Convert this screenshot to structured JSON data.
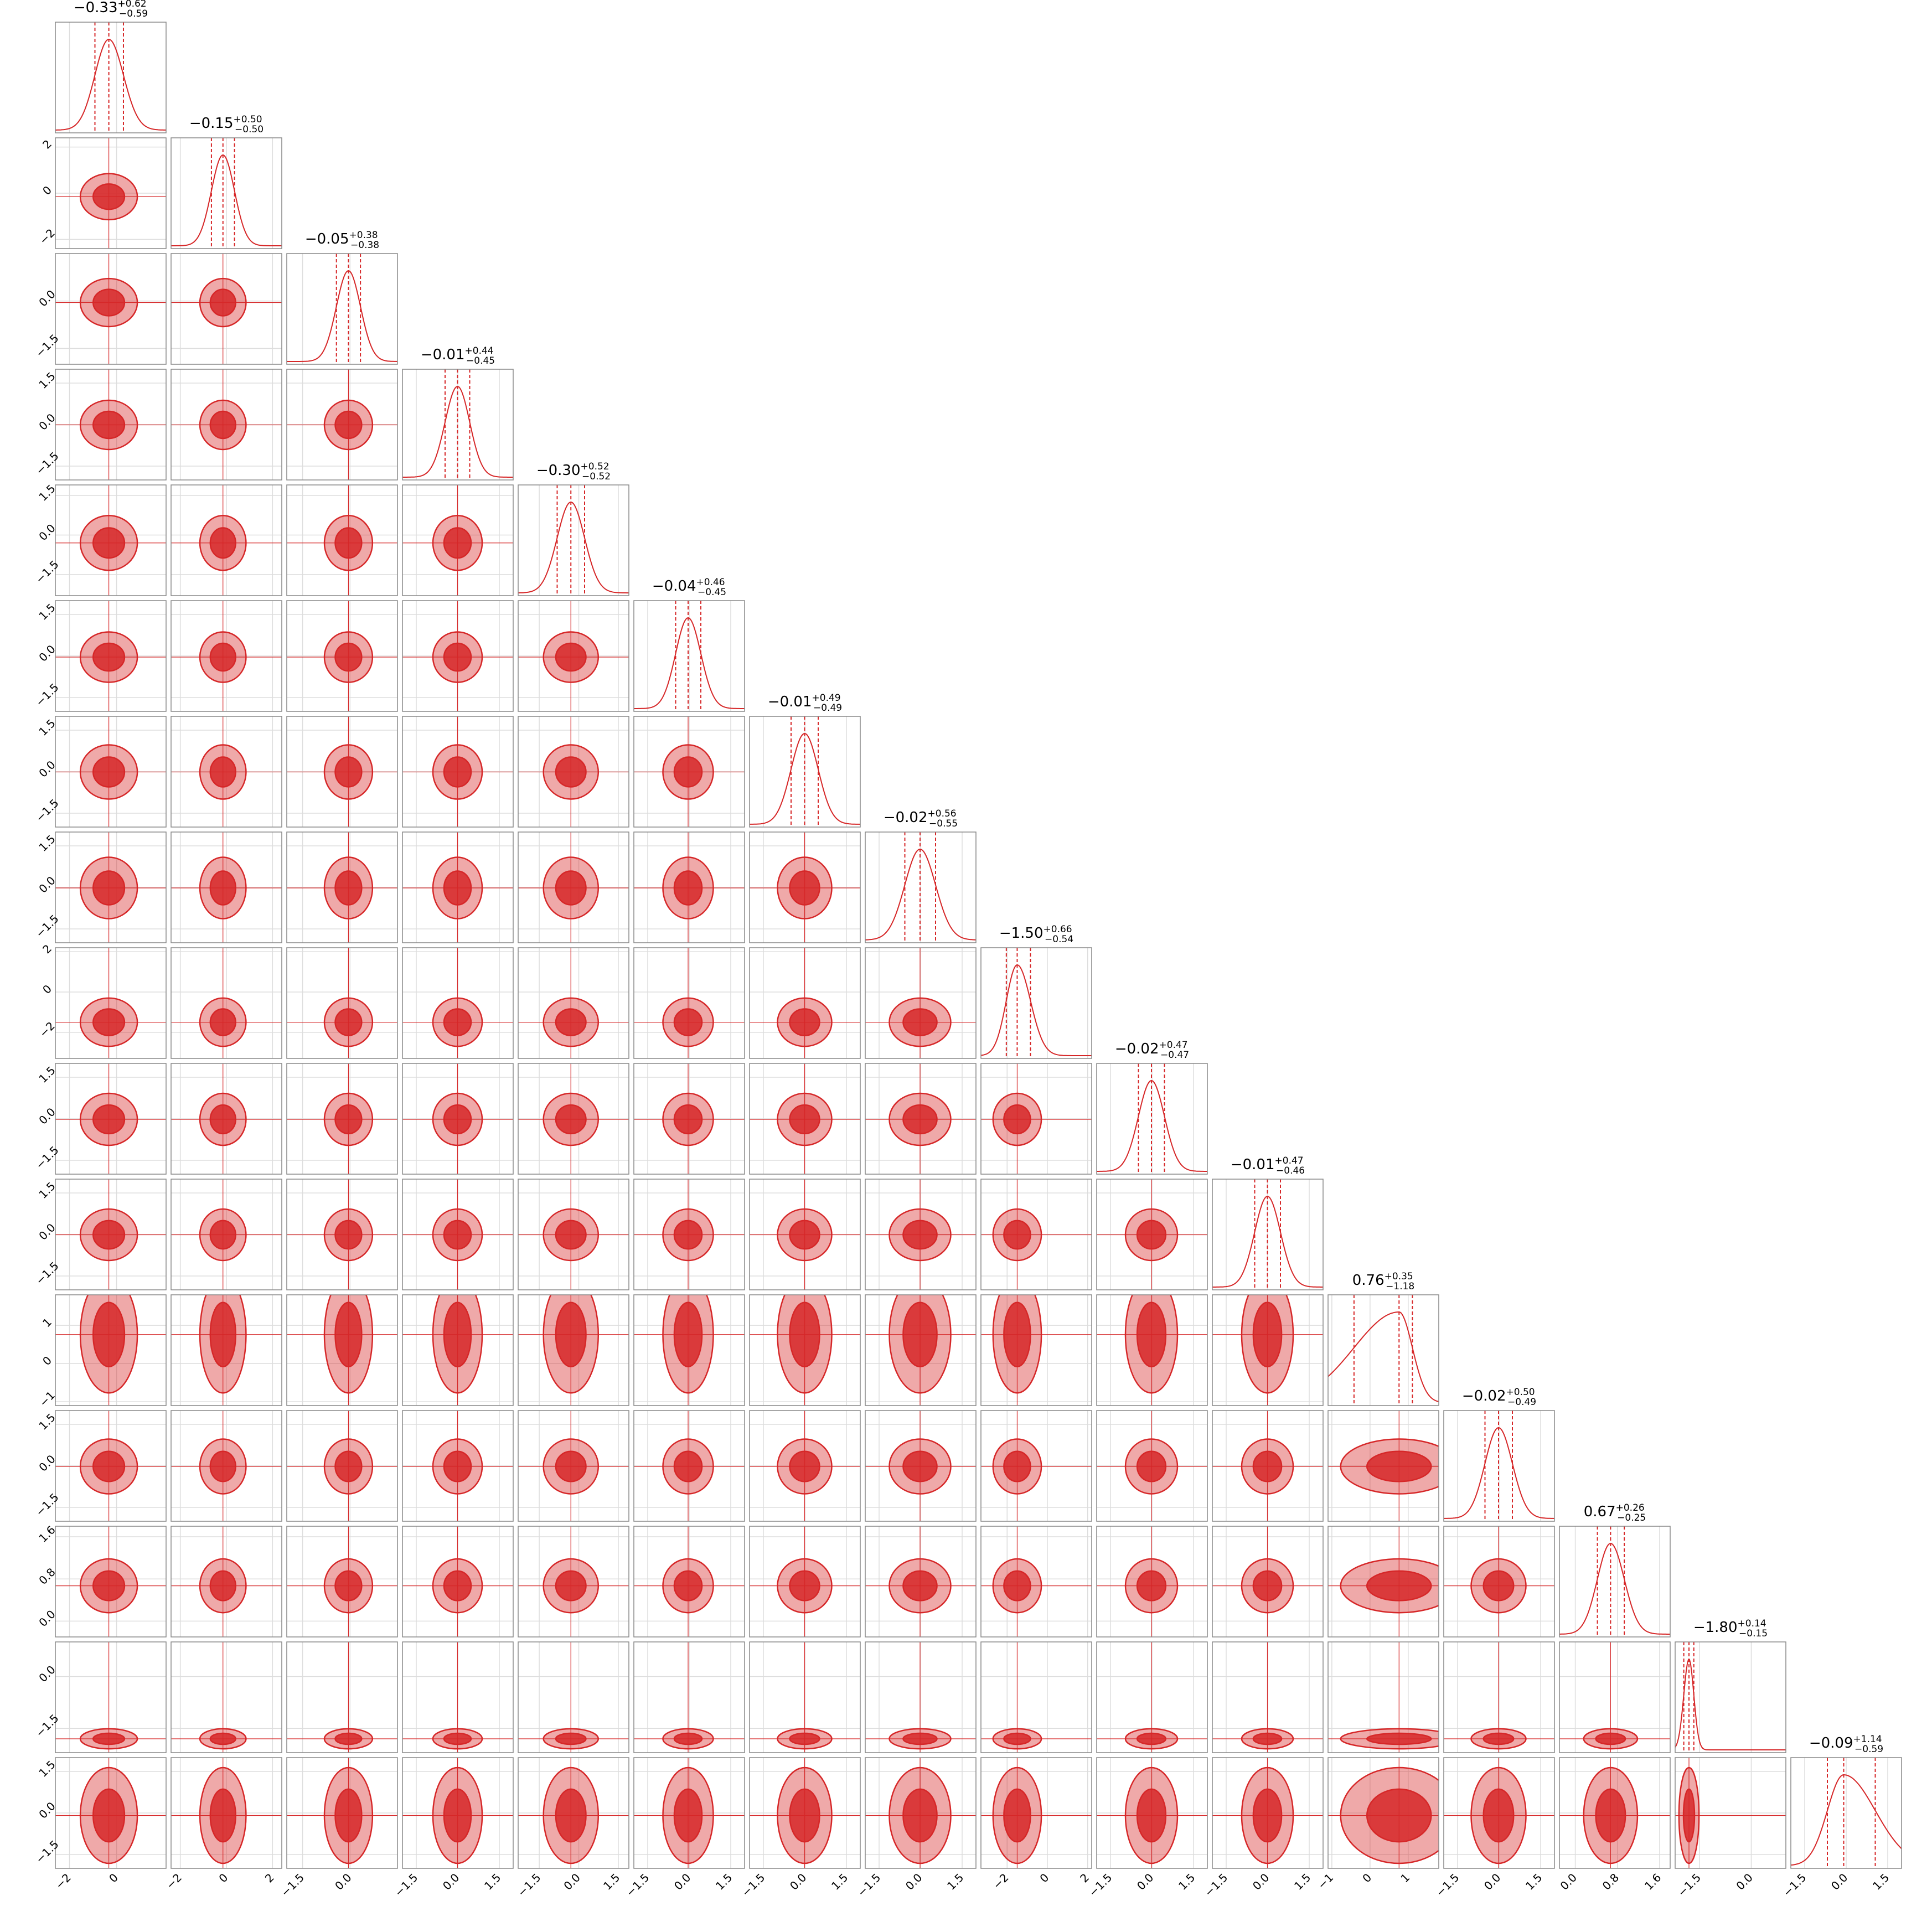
{
  "chart_data": {
    "type": "corner",
    "color": "#d62728",
    "grid": true,
    "parameters": [
      {
        "median": -0.33,
        "median_label": "−0.33",
        "plus": 0.62,
        "plus_label": "+0.62",
        "minus": 0.59,
        "minus_label": "−0.59",
        "lim": [
          -2.6,
          2.1
        ],
        "ticks": [
          {
            "value": -2,
            "label": "−2"
          },
          0
        ]
      },
      {
        "median": -0.15,
        "median_label": "−0.15",
        "plus": 0.5,
        "plus_label": "+0.50",
        "minus": 0.5,
        "minus_label": "−0.50",
        "lim": [
          -2.4,
          2.4
        ],
        "ticks": [
          {
            "value": -2,
            "label": "−2"
          },
          0,
          2
        ]
      },
      {
        "median": -0.05,
        "median_label": "−0.05",
        "plus": 0.38,
        "plus_label": "+0.38",
        "minus": 0.38,
        "minus_label": "−0.38",
        "lim": [
          -2,
          1.5
        ],
        "ticks": [
          {
            "value": -1.5,
            "label": "−1.5"
          },
          {
            "value": 0,
            "label": "0.0"
          }
        ]
      },
      {
        "median": -0.01,
        "median_label": "−0.01",
        "plus": 0.44,
        "plus_label": "+0.44",
        "minus": 0.45,
        "minus_label": "−0.45",
        "lim": [
          -2,
          2
        ],
        "ticks": [
          {
            "value": -1.5,
            "label": "−1.5"
          },
          {
            "value": 0,
            "label": "0.0"
          },
          1.5
        ]
      },
      {
        "median": -0.3,
        "median_label": "−0.30",
        "plus": 0.52,
        "plus_label": "+0.52",
        "minus": 0.52,
        "minus_label": "−0.52",
        "lim": [
          -2.3,
          1.9
        ],
        "ticks": [
          {
            "value": -1.5,
            "label": "−1.5"
          },
          {
            "value": 0,
            "label": "0.0"
          },
          1.5
        ]
      },
      {
        "median": -0.04,
        "median_label": "−0.04",
        "plus": 0.46,
        "plus_label": "+0.46",
        "minus": 0.45,
        "minus_label": "−0.45",
        "lim": [
          -2,
          2
        ],
        "ticks": [
          {
            "value": -1.5,
            "label": "−1.5"
          },
          {
            "value": 0,
            "label": "0.0"
          },
          1.5
        ]
      },
      {
        "median": -0.01,
        "median_label": "−0.01",
        "plus": 0.49,
        "plus_label": "+0.49",
        "minus": 0.49,
        "minus_label": "−0.49",
        "lim": [
          -2,
          2
        ],
        "ticks": [
          {
            "value": -1.5,
            "label": "−1.5"
          },
          {
            "value": 0,
            "label": "0.0"
          },
          1.5
        ]
      },
      {
        "median": -0.02,
        "median_label": "−0.02",
        "plus": 0.56,
        "plus_label": "+0.56",
        "minus": 0.55,
        "minus_label": "−0.55",
        "lim": [
          -2,
          2
        ],
        "ticks": [
          {
            "value": -1.5,
            "label": "−1.5"
          },
          {
            "value": 0,
            "label": "0.0"
          },
          1.5
        ]
      },
      {
        "median": -1.5,
        "median_label": "−1.50",
        "plus": 0.66,
        "plus_label": "+0.66",
        "minus": 0.54,
        "minus_label": "−0.54",
        "lim": [
          -3.3,
          2.2
        ],
        "ticks": [
          {
            "value": -2,
            "label": "−2"
          },
          0,
          2
        ]
      },
      {
        "median": -0.02,
        "median_label": "−0.02",
        "plus": 0.47,
        "plus_label": "+0.47",
        "minus": 0.47,
        "minus_label": "−0.47",
        "lim": [
          -2,
          2
        ],
        "ticks": [
          {
            "value": -1.5,
            "label": "−1.5"
          },
          {
            "value": 0,
            "label": "0.0"
          },
          1.5
        ]
      },
      {
        "median": -0.01,
        "median_label": "−0.01",
        "plus": 0.47,
        "plus_label": "+0.47",
        "minus": 0.46,
        "minus_label": "−0.46",
        "lim": [
          -2,
          2
        ],
        "ticks": [
          {
            "value": -1.5,
            "label": "−1.5"
          },
          {
            "value": 0,
            "label": "0.0"
          },
          1.5
        ]
      },
      {
        "median": 0.76,
        "median_label": "0.76",
        "plus": 0.35,
        "plus_label": "+0.35",
        "minus": 1.18,
        "minus_label": "−1.18",
        "lim": [
          -1.1,
          1.8
        ],
        "ticks": [
          {
            "value": -1,
            "label": "−1"
          },
          0,
          1
        ]
      },
      {
        "median": -0.02,
        "median_label": "−0.02",
        "plus": 0.5,
        "plus_label": "+0.50",
        "minus": 0.49,
        "minus_label": "−0.49",
        "lim": [
          -2,
          2
        ],
        "ticks": [
          {
            "value": -1.5,
            "label": "−1.5"
          },
          {
            "value": 0,
            "label": "0.0"
          },
          1.5
        ]
      },
      {
        "median": 0.67,
        "median_label": "0.67",
        "plus": 0.26,
        "plus_label": "+0.26",
        "minus": 0.25,
        "minus_label": "−0.25",
        "lim": [
          -0.3,
          1.8
        ],
        "ticks": [
          {
            "value": 0,
            "label": "0.0"
          },
          0.8,
          1.6
        ]
      },
      {
        "median": -1.8,
        "median_label": "−1.80",
        "plus": 0.14,
        "plus_label": "+0.14",
        "minus": 0.15,
        "minus_label": "−0.15",
        "lim": [
          -2.2,
          1.0
        ],
        "ticks": [
          {
            "value": -1.5,
            "label": "−1.5"
          },
          {
            "value": 0,
            "label": "0.0"
          }
        ]
      },
      {
        "median": -0.09,
        "median_label": "−0.09",
        "plus": 1.14,
        "plus_label": "+1.14",
        "minus": 0.59,
        "minus_label": "−0.59",
        "lim": [
          -2,
          2
        ],
        "ticks": [
          {
            "value": -1.5,
            "label": "−1.5"
          },
          {
            "value": 0,
            "label": "0.0"
          },
          1.5
        ]
      }
    ]
  }
}
